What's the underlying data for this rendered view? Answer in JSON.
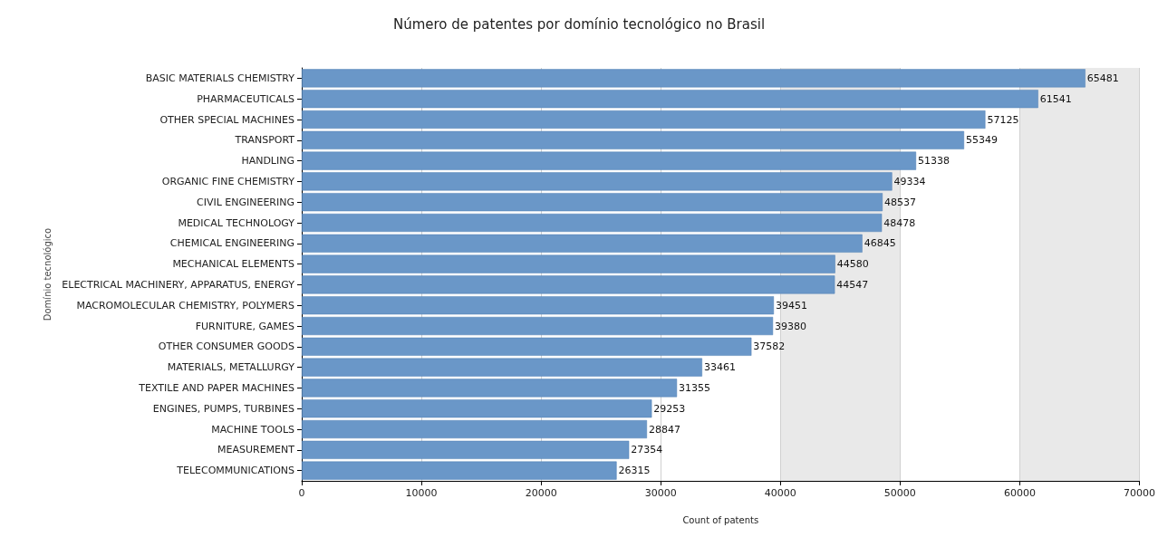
{
  "chart_data": {
    "type": "bar",
    "orientation": "horizontal",
    "title": "Número de patentes por domínio tecnológico no Brasil",
    "xlabel": "Count of patents",
    "ylabel": "Domínio tecnológico",
    "categories": [
      "BASIC MATERIALS CHEMISTRY",
      "PHARMACEUTICALS",
      "OTHER SPECIAL MACHINES",
      "TRANSPORT",
      "HANDLING",
      "ORGANIC FINE CHEMISTRY",
      "CIVIL ENGINEERING",
      "MEDICAL TECHNOLOGY",
      "CHEMICAL ENGINEERING",
      "MECHANICAL ELEMENTS",
      "ELECTRICAL MACHINERY, APPARATUS, ENERGY",
      "MACROMOLECULAR CHEMISTRY, POLYMERS",
      "FURNITURE, GAMES",
      "OTHER CONSUMER GOODS",
      "MATERIALS, METALLURGY",
      "TEXTILE AND PAPER MACHINES",
      "ENGINES, PUMPS, TURBINES",
      "MACHINE TOOLS",
      "MEASUREMENT",
      "TELECOMMUNICATIONS"
    ],
    "values": [
      65481,
      61541,
      57125,
      55349,
      51338,
      49334,
      48537,
      48478,
      46845,
      44580,
      44547,
      39451,
      39380,
      37582,
      33461,
      31355,
      29253,
      28847,
      27354,
      26315
    ],
    "color": "#6a97c8",
    "data_labels": true,
    "xlim": [
      0,
      70000
    ],
    "xticks": [
      0,
      10000,
      20000,
      30000,
      40000,
      50000,
      60000,
      70000
    ],
    "grid": "x"
  }
}
